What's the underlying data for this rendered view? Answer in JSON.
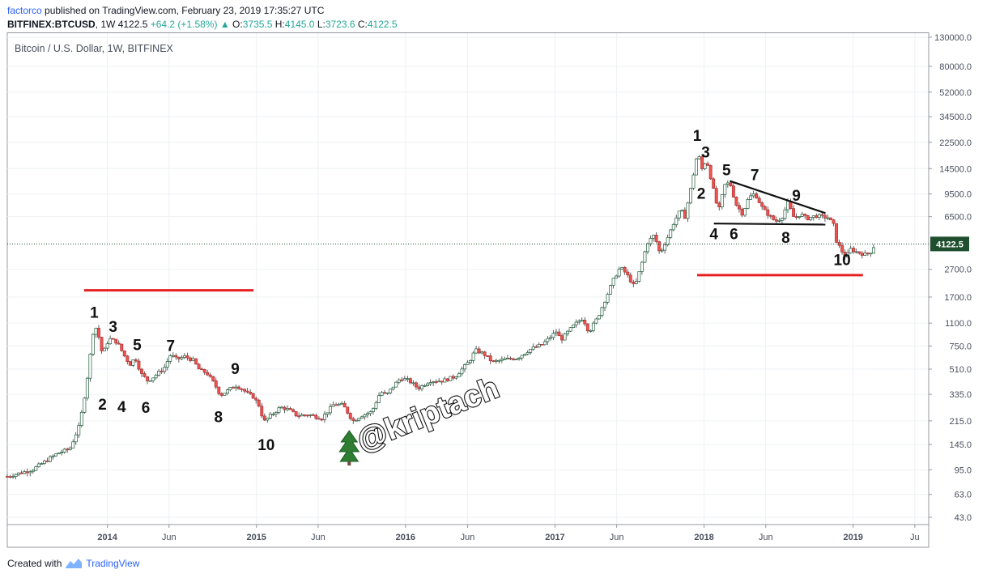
{
  "header": {
    "author": "factorco",
    "published_text": "published on TradingView.com, February 23, 2019 17:35:27 UTC",
    "symbol": "BITFINEX:BTCUSD",
    "interval": "1W",
    "last": "4122.5",
    "change": "+64.2 (+1.58%)",
    "open_label": "O:",
    "open": "3735.5",
    "high_label": "H:",
    "high": "4145.0",
    "low_label": "L:",
    "low": "3723.6",
    "close_label": "C:",
    "close": "4122.5"
  },
  "footer": {
    "created_with": "Created with",
    "brand": "TradingView"
  },
  "colors": {
    "up": "#26a69a",
    "down": "#ef5350",
    "candle_up_fill": "#ffffff",
    "candle_up_border": "#1f5c3b",
    "candle_down_fill": "#ef5350",
    "annotation_line": "#e62020",
    "trendline": "#111111",
    "price_tag": "#1f4f2e"
  },
  "chart_data": {
    "type": "candlestick",
    "title": "Bitcoin / U.S. Dollar, 1W, BITFINEX",
    "scale": "log",
    "y_ticks": [
      43,
      63,
      95,
      145,
      215,
      335,
      510,
      750,
      1100,
      1700,
      2700,
      4122.5,
      6500,
      9500,
      14500,
      22500,
      34500,
      52000,
      80000,
      130000
    ],
    "y_tick_labels": [
      "43.0",
      "63.0",
      "95.0",
      "145.0",
      "215.0",
      "335.0",
      "510.0",
      "750.0",
      "1100.0",
      "1700.0",
      "2700.0",
      "4122.5",
      "6500.0",
      "9500.0",
      "14500.0",
      "22500.0",
      "34500.0",
      "52000.0",
      "80000.0",
      "130000.0"
    ],
    "x_ticks": [
      "2014-01",
      "2014-06",
      "2015-01",
      "2015-06",
      "2016-01",
      "2016-06",
      "2017-01",
      "2017-06",
      "2018-01",
      "2018-06",
      "2019-01",
      "2019-06"
    ],
    "x_tick_labels": [
      "2014",
      "Jun",
      "2015",
      "Jun",
      "2016",
      "Jun",
      "2017",
      "Jun",
      "2018",
      "Jun",
      "2019",
      "Ju"
    ],
    "last_price": 4122.5,
    "last_price_label": "4122.5",
    "price_path": [
      [
        "2013-05-01",
        85
      ],
      [
        "2013-07-01",
        95
      ],
      [
        "2013-09-01",
        125
      ],
      [
        "2013-10-01",
        135
      ],
      [
        "2013-10-25",
        200
      ],
      [
        "2013-11-10",
        380
      ],
      [
        "2013-11-30",
        1100
      ],
      [
        "2013-12-10",
        900
      ],
      [
        "2013-12-20",
        650
      ],
      [
        "2014-01-05",
        850
      ],
      [
        "2014-01-25",
        800
      ],
      [
        "2014-02-10",
        650
      ],
      [
        "2014-02-25",
        550
      ],
      [
        "2014-03-10",
        620
      ],
      [
        "2014-03-25",
        470
      ],
      [
        "2014-04-10",
        420
      ],
      [
        "2014-04-25",
        450
      ],
      [
        "2014-05-20",
        520
      ],
      [
        "2014-06-05",
        650
      ],
      [
        "2014-06-20",
        600
      ],
      [
        "2014-07-10",
        630
      ],
      [
        "2014-07-30",
        590
      ],
      [
        "2014-08-15",
        500
      ],
      [
        "2014-09-01",
        480
      ],
      [
        "2014-09-20",
        400
      ],
      [
        "2014-10-05",
        330
      ],
      [
        "2014-10-25",
        360
      ],
      [
        "2014-11-10",
        390
      ],
      [
        "2014-11-25",
        370
      ],
      [
        "2014-12-10",
        340
      ],
      [
        "2014-12-25",
        320
      ],
      [
        "2015-01-10",
        270
      ],
      [
        "2015-01-18",
        210
      ],
      [
        "2015-02-01",
        230
      ],
      [
        "2015-03-01",
        270
      ],
      [
        "2015-03-20",
        260
      ],
      [
        "2015-04-10",
        235
      ],
      [
        "2015-05-10",
        238
      ],
      [
        "2015-06-10",
        225
      ],
      [
        "2015-07-10",
        285
      ],
      [
        "2015-08-01",
        280
      ],
      [
        "2015-08-25",
        215
      ],
      [
        "2015-09-15",
        235
      ],
      [
        "2015-10-10",
        250
      ],
      [
        "2015-11-01",
        350
      ],
      [
        "2015-11-15",
        330
      ],
      [
        "2015-12-01",
        380
      ],
      [
        "2015-12-20",
        440
      ],
      [
        "2016-01-10",
        420
      ],
      [
        "2016-02-01",
        370
      ],
      [
        "2016-03-01",
        420
      ],
      [
        "2016-04-01",
        420
      ],
      [
        "2016-05-01",
        450
      ],
      [
        "2016-06-05",
        580
      ],
      [
        "2016-06-20",
        700
      ],
      [
        "2016-07-10",
        660
      ],
      [
        "2016-08-01",
        575
      ],
      [
        "2016-09-01",
        600
      ],
      [
        "2016-10-01",
        615
      ],
      [
        "2016-11-01",
        710
      ],
      [
        "2016-12-01",
        770
      ],
      [
        "2017-01-05",
        960
      ],
      [
        "2017-01-15",
        830
      ],
      [
        "2017-02-15",
        1050
      ],
      [
        "2017-03-10",
        1200
      ],
      [
        "2017-03-25",
        950
      ],
      [
        "2017-04-15",
        1200
      ],
      [
        "2017-05-10",
        1800
      ],
      [
        "2017-05-25",
        2300
      ],
      [
        "2017-06-10",
        2800
      ],
      [
        "2017-06-25",
        2500
      ],
      [
        "2017-07-15",
        2000
      ],
      [
        "2017-07-30",
        2800
      ],
      [
        "2017-08-15",
        4200
      ],
      [
        "2017-09-01",
        4800
      ],
      [
        "2017-09-15",
        3500
      ],
      [
        "2017-10-01",
        4400
      ],
      [
        "2017-10-20",
        6000
      ],
      [
        "2017-11-05",
        7300
      ],
      [
        "2017-11-15",
        6500
      ],
      [
        "2017-12-01",
        11000
      ],
      [
        "2017-12-17",
        19800
      ],
      [
        "2017-12-25",
        14000
      ],
      [
        "2018-01-07",
        17000
      ],
      [
        "2018-01-20",
        11500
      ],
      [
        "2018-02-05",
        7000
      ],
      [
        "2018-02-20",
        11000
      ],
      [
        "2018-03-05",
        11500
      ],
      [
        "2018-03-20",
        8000
      ],
      [
        "2018-04-05",
        6800
      ],
      [
        "2018-04-20",
        8900
      ],
      [
        "2018-05-05",
        9600
      ],
      [
        "2018-05-25",
        7400
      ],
      [
        "2018-06-10",
        6600
      ],
      [
        "2018-06-25",
        6000
      ],
      [
        "2018-07-10",
        6400
      ],
      [
        "2018-07-25",
        8200
      ],
      [
        "2018-08-10",
        6300
      ],
      [
        "2018-08-25",
        6800
      ],
      [
        "2018-09-10",
        6300
      ],
      [
        "2018-10-01",
        6600
      ],
      [
        "2018-11-01",
        6400
      ],
      [
        "2018-11-15",
        5600
      ],
      [
        "2018-11-20",
        4400
      ],
      [
        "2018-12-01",
        3800
      ],
      [
        "2018-12-15",
        3250
      ],
      [
        "2018-12-25",
        3800
      ],
      [
        "2019-01-10",
        3600
      ],
      [
        "2019-02-01",
        3450
      ],
      [
        "2019-02-15",
        3650
      ],
      [
        "2019-02-23",
        4122.5
      ]
    ],
    "annotations": {
      "wave_labels_2014": [
        {
          "text": "1",
          "date": "2013-11-30",
          "price": 1200
        },
        {
          "text": "2",
          "date": "2013-12-20",
          "price": 260
        },
        {
          "text": "3",
          "date": "2014-01-15",
          "price": 950
        },
        {
          "text": "4",
          "date": "2014-02-05",
          "price": 250
        },
        {
          "text": "5",
          "date": "2014-03-15",
          "price": 700
        },
        {
          "text": "6",
          "date": "2014-04-05",
          "price": 245
        },
        {
          "text": "7",
          "date": "2014-06-05",
          "price": 690
        },
        {
          "text": "8",
          "date": "2014-09-30",
          "price": 210
        },
        {
          "text": "9",
          "date": "2014-11-10",
          "price": 470
        },
        {
          "text": "10",
          "date": "2015-01-25",
          "price": 132
        }
      ],
      "wave_labels_2018": [
        {
          "text": "1",
          "date": "2017-12-15",
          "price": 23000
        },
        {
          "text": "3",
          "date": "2018-01-05",
          "price": 17500
        },
        {
          "text": "2",
          "date": "2017-12-25",
          "price": 8800
        },
        {
          "text": "5",
          "date": "2018-02-25",
          "price": 13000
        },
        {
          "text": "7",
          "date": "2018-05-05",
          "price": 12000
        },
        {
          "text": "9",
          "date": "2018-08-15",
          "price": 8500
        },
        {
          "text": "4",
          "date": "2018-01-25",
          "price": 4450
        },
        {
          "text": "6",
          "date": "2018-03-15",
          "price": 4450
        },
        {
          "text": "8",
          "date": "2018-07-20",
          "price": 4200
        },
        {
          "text": "10",
          "date": "2018-12-05",
          "price": 2900
        }
      ],
      "red_lines": [
        {
          "from": [
            "2013-11-05",
            1900
          ],
          "to": [
            "2014-12-25",
            1900
          ]
        },
        {
          "from": [
            "2017-12-15",
            2450
          ],
          "to": [
            "2019-01-25",
            2450
          ]
        }
      ],
      "trendlines": [
        {
          "from": [
            "2018-03-05",
            11800
          ],
          "to": [
            "2018-10-25",
            6900
          ]
        },
        {
          "from": [
            "2018-01-25",
            5800
          ],
          "to": [
            "2018-10-25",
            5700
          ]
        }
      ],
      "watermark": {
        "text": "@kriptach",
        "date": "2015-09-05",
        "price": 125
      }
    }
  }
}
